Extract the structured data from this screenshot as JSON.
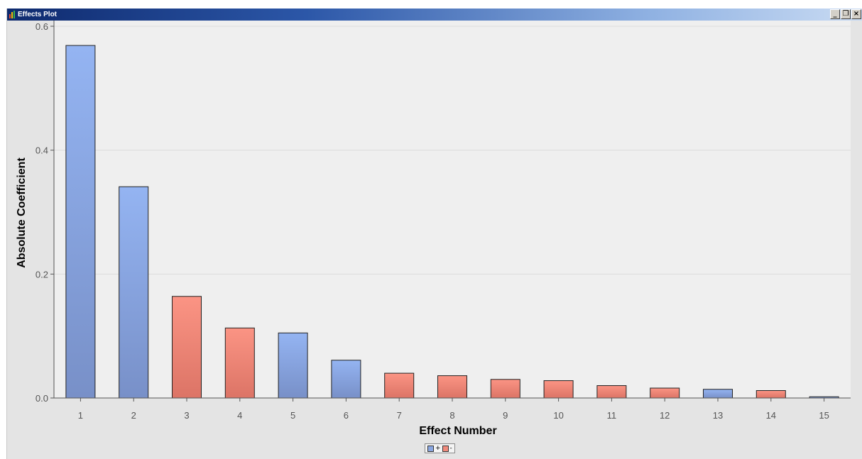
{
  "window": {
    "title": "Effects Plot",
    "controls": [
      "_",
      "❐",
      "×"
    ]
  },
  "chart_data": {
    "type": "bar",
    "title": "",
    "xlabel": "Effect Number",
    "ylabel": "Absolute Coefficient",
    "categories": [
      "1",
      "2",
      "3",
      "4",
      "5",
      "6",
      "7",
      "8",
      "9",
      "10",
      "11",
      "12",
      "13",
      "14",
      "15"
    ],
    "values": [
      0.569,
      0.341,
      0.164,
      0.113,
      0.105,
      0.061,
      0.04,
      0.036,
      0.03,
      0.028,
      0.02,
      0.016,
      0.014,
      0.012,
      0.002
    ],
    "signs": [
      "+",
      "+",
      "-",
      "-",
      "+",
      "+",
      "-",
      "-",
      "-",
      "-",
      "-",
      "-",
      "+",
      "-",
      "+"
    ],
    "ylim": [
      0,
      0.6
    ],
    "yticks": [
      "0.0",
      "0.2",
      "0.4",
      "0.6"
    ],
    "grid": true,
    "legend": {
      "position": "bottom-center",
      "entries": [
        {
          "label": "+",
          "color": "#8aa6e0"
        },
        {
          "label": "-",
          "color": "#f08a7c"
        }
      ]
    },
    "colors": {
      "positive_top": "#94b4f2",
      "positive_bottom": "#7890c8",
      "negative_top": "#fb9484",
      "negative_bottom": "#dc7466",
      "plot_bg": "#efefef",
      "bar_stroke": "#222222"
    }
  }
}
